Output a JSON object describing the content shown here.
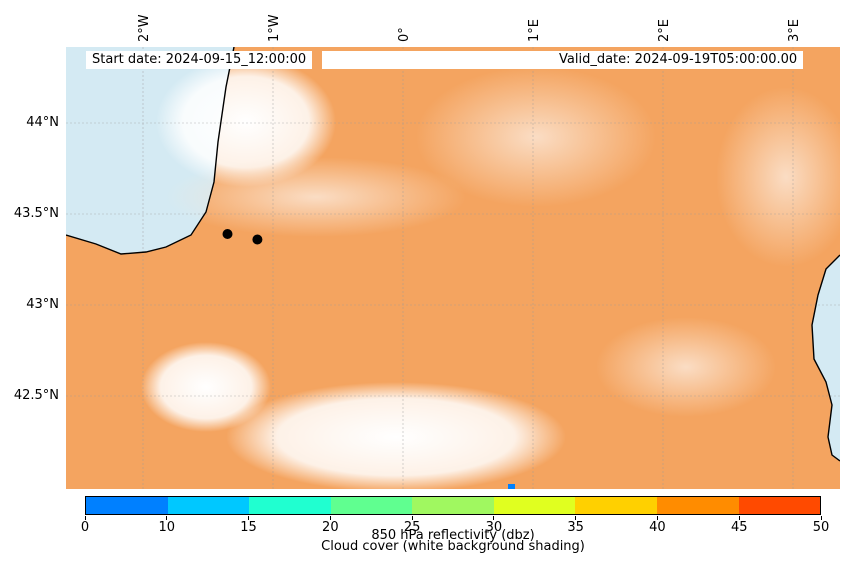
{
  "header": {
    "start_date": "Start date: 2024-09-15_12:00:00",
    "valid_date": "Valid_date: 2024-09-19T05:00:00.00"
  },
  "axes": {
    "longitude_labels": [
      "2°W",
      "1°W",
      "0°",
      "1°E",
      "2°E",
      "3°E"
    ],
    "latitude_labels": [
      "44°N",
      "43.5°N",
      "43°N",
      "42.5°N"
    ]
  },
  "markers": [
    {
      "name": "marker-1",
      "lon": -1.35,
      "lat": 43.39
    },
    {
      "name": "marker-2",
      "lon": -1.12,
      "lat": 43.36
    }
  ],
  "colorbar": {
    "tick_labels": [
      "0",
      "10",
      "15",
      "20",
      "25",
      "30",
      "35",
      "40",
      "45",
      "50"
    ],
    "colors": [
      "#0080ff",
      "#00c8ff",
      "#20ffd0",
      "#60ff90",
      "#a0f860",
      "#e0ff20",
      "#ffd000",
      "#ff8c00",
      "#ff4a00"
    ],
    "label": "850 hPa reflectivity (dbz)",
    "sublabel": "Cloud cover (white background shading)"
  },
  "colors": {
    "cloud_fill": "#f4a460",
    "sea": "#d4eaf3",
    "coastline": "#000000"
  }
}
